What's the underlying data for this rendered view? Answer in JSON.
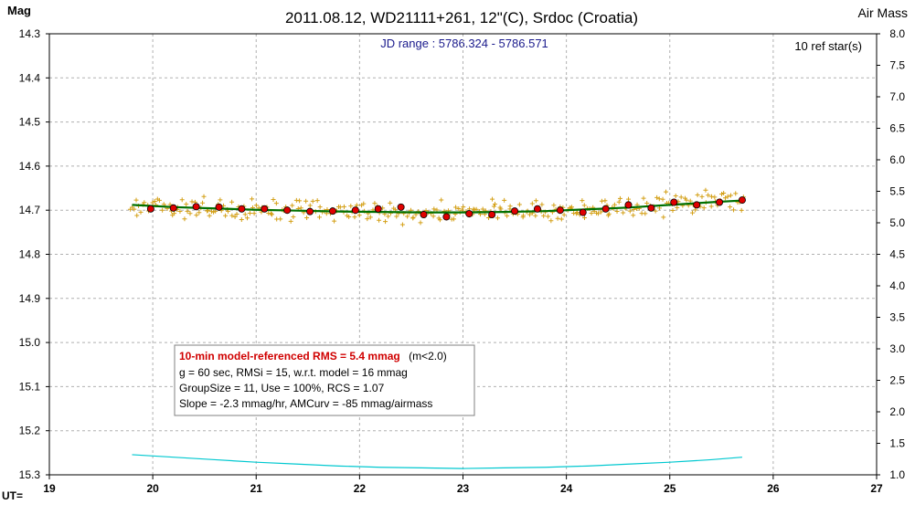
{
  "chart_data": {
    "type": "scatter",
    "title": "2011.08.12, WD21111+261, 12\"(C), Srdoc (Croatia)",
    "subtitle": "JD range : 5786.324 - 5786.571",
    "ref_stars": "10 ref star(s)",
    "ylabel_left": "Mag",
    "ylabel_right": "Air Mass",
    "xlabel": "UT=",
    "xlim": [
      19,
      27
    ],
    "ylim_mag": [
      14.3,
      15.3
    ],
    "ylim_airmass": [
      1.0,
      8.0
    ],
    "y_inverted": true,
    "grid": true,
    "x_ticks": [
      "19",
      "20",
      "21",
      "22",
      "23",
      "24",
      "25",
      "26",
      "27"
    ],
    "y_ticks_left": [
      "14.3",
      "14.4",
      "14.5",
      "14.6",
      "14.7",
      "14.8",
      "14.9",
      "15.0",
      "15.1",
      "15.2",
      "15.3"
    ],
    "y_ticks_right": [
      "8.0",
      "7.5",
      "7.0",
      "6.5",
      "6.0",
      "5.5",
      "5.0",
      "4.5",
      "4.0",
      "3.5",
      "3.0",
      "2.5",
      "2.0",
      "1.5",
      "1.0"
    ],
    "colors": {
      "raw_points": "#d4a017",
      "binned_points": "#e00000",
      "model_line": "#007000",
      "airmass_line": "#00c8d0",
      "grid": "#b0b0b0"
    },
    "series": [
      {
        "type": "line",
        "x": [
          19.8,
          20.2,
          20.6,
          21.0,
          21.4,
          21.8,
          22.2,
          22.6,
          23.0,
          23.4,
          23.8,
          24.2,
          24.6,
          25.0,
          25.4,
          25.7
        ],
        "y": [
          14.688,
          14.693,
          14.696,
          14.699,
          14.701,
          14.703,
          14.704,
          14.705,
          14.705,
          14.704,
          14.702,
          14.698,
          14.694,
          14.688,
          14.682,
          14.678
        ]
      },
      {
        "type": "binned",
        "x": [
          19.98,
          20.2,
          20.42,
          20.64,
          20.86,
          21.08,
          21.3,
          21.52,
          21.74,
          21.96,
          22.18,
          22.4,
          22.62,
          22.84,
          23.06,
          23.28,
          23.5,
          23.72,
          23.94,
          24.16,
          24.38,
          24.6,
          24.82,
          25.04,
          25.26,
          25.48,
          25.7
        ],
        "y": [
          14.697,
          14.695,
          14.692,
          14.693,
          14.697,
          14.697,
          14.7,
          14.703,
          14.702,
          14.7,
          14.697,
          14.693,
          14.71,
          14.715,
          14.708,
          14.71,
          14.702,
          14.697,
          14.7,
          14.705,
          14.697,
          14.688,
          14.695,
          14.682,
          14.688,
          14.682,
          14.677
        ]
      },
      {
        "type": "airmass",
        "x": [
          19.8,
          20.2,
          20.6,
          21.0,
          21.4,
          21.8,
          22.2,
          22.6,
          23.0,
          23.4,
          23.8,
          24.2,
          24.6,
          25.0,
          25.4,
          25.7
        ],
        "y": [
          1.32,
          1.28,
          1.24,
          1.2,
          1.17,
          1.14,
          1.12,
          1.11,
          1.1,
          1.11,
          1.12,
          1.14,
          1.17,
          1.2,
          1.24,
          1.28
        ]
      }
    ],
    "annotation": {
      "line1": "10-min model-referenced RMS = 5.4 mmag",
      "line1b": "(m<2.0)",
      "line2": "g = 60 sec, RMSi = 15, w.r.t. model = 16 mmag",
      "line3": "GroupSize = 11, Use = 100%, RCS = 1.07",
      "line4": "Slope = -2.3 mmag/hr, AMCurv = -85 mmag/airmass"
    }
  }
}
